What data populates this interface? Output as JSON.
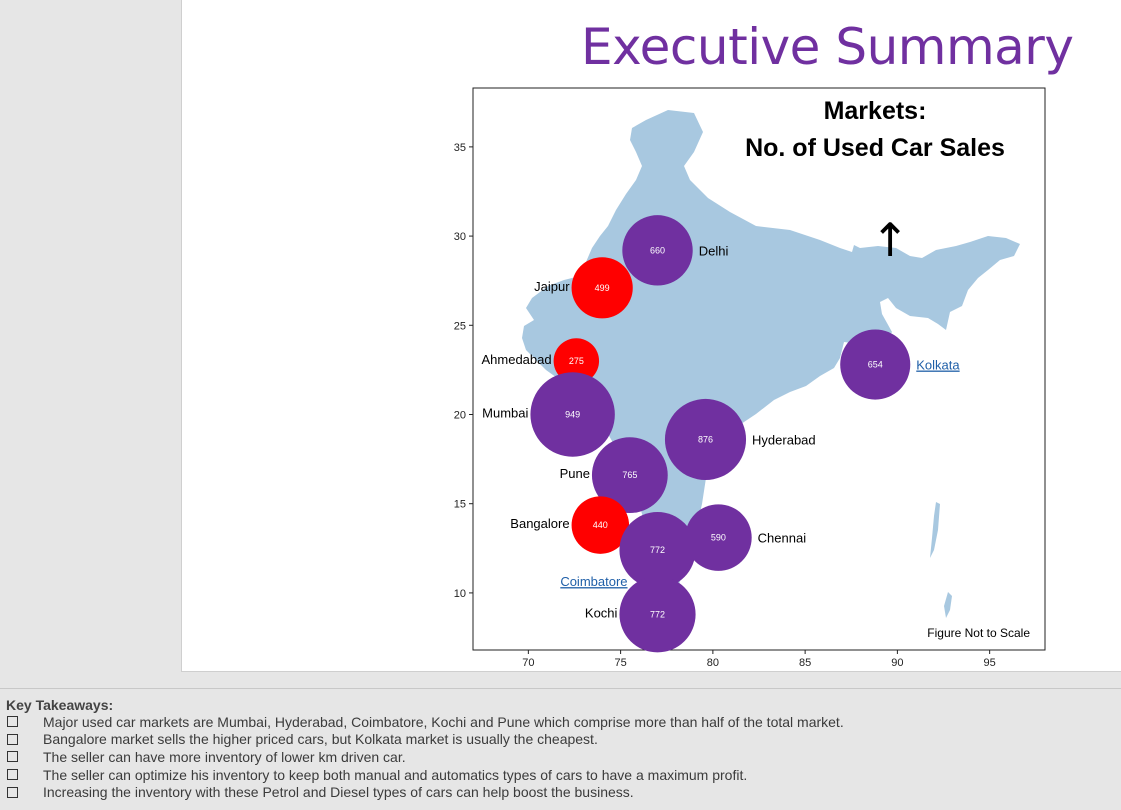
{
  "slide": {
    "title": "Executive Summary"
  },
  "chart_data": {
    "type": "scatter",
    "title": "Markets:\nNo. of Used Car Sales",
    "title_lines": [
      "Markets:",
      "No. of Used Car Sales"
    ],
    "xlabel": "",
    "ylabel": "",
    "xlim": [
      67,
      98
    ],
    "ylim": [
      6.8,
      38.3
    ],
    "xticks": [
      70,
      75,
      80,
      85,
      90,
      95
    ],
    "yticks": [
      10,
      15,
      20,
      25,
      30,
      35
    ],
    "annotation": "Figure Not to Scale",
    "arrow_symbol": "↑",
    "colors": {
      "high": "#7030a0",
      "low": "#ff0000",
      "map": "#a8c8e0",
      "link": "#1f5fa8"
    },
    "points": [
      {
        "city": "Delhi",
        "x": 77.0,
        "y": 29.2,
        "sales": 660,
        "color": "#7030a0",
        "label_side": "right",
        "link": false
      },
      {
        "city": "Jaipur",
        "x": 74.0,
        "y": 27.1,
        "sales": 499,
        "color": "#ff0000",
        "label_side": "left",
        "link": false
      },
      {
        "city": "Ahmedabad",
        "x": 72.6,
        "y": 23.0,
        "sales": 275,
        "color": "#ff0000",
        "label_side": "left",
        "link": false
      },
      {
        "city": "Kolkata",
        "x": 88.8,
        "y": 22.8,
        "sales": 654,
        "color": "#7030a0",
        "label_side": "right",
        "link": true
      },
      {
        "city": "Mumbai",
        "x": 72.4,
        "y": 20.0,
        "sales": 949,
        "color": "#7030a0",
        "label_side": "left",
        "link": false
      },
      {
        "city": "Hyderabad",
        "x": 79.6,
        "y": 18.6,
        "sales": 876,
        "color": "#7030a0",
        "label_side": "right",
        "link": false
      },
      {
        "city": "Pune",
        "x": 75.5,
        "y": 16.6,
        "sales": 765,
        "color": "#7030a0",
        "label_side": "left",
        "link": false
      },
      {
        "city": "Bangalore",
        "x": 73.9,
        "y": 13.8,
        "sales": 440,
        "color": "#ff0000",
        "label_side": "left",
        "link": false
      },
      {
        "city": "Chennai",
        "x": 80.3,
        "y": 13.1,
        "sales": 590,
        "color": "#7030a0",
        "label_side": "right",
        "link": false
      },
      {
        "city": "Coimbatore",
        "x": 77.0,
        "y": 12.4,
        "sales": 772,
        "color": "#7030a0",
        "label_side": "below-left",
        "link": true
      },
      {
        "city": "Kochi",
        "x": 77.0,
        "y": 8.8,
        "sales": 772,
        "color": "#7030a0",
        "label_side": "left",
        "link": false
      }
    ]
  },
  "notes": {
    "heading": "Key Takeaways:",
    "items": [
      "Major used car markets are Mumbai, Hyderabad, Coimbatore, Kochi and Pune which comprise more than half of the total market.",
      "Bangalore market sells the higher priced cars, but Kolkata market is usually the cheapest.",
      "The seller can have more inventory of lower km driven car.",
      "The seller can optimize his inventory to keep both manual and automatics types of cars to have a maximum profit.",
      "Increasing the inventory with these Petrol and Diesel types of cars can help boost the business."
    ]
  }
}
